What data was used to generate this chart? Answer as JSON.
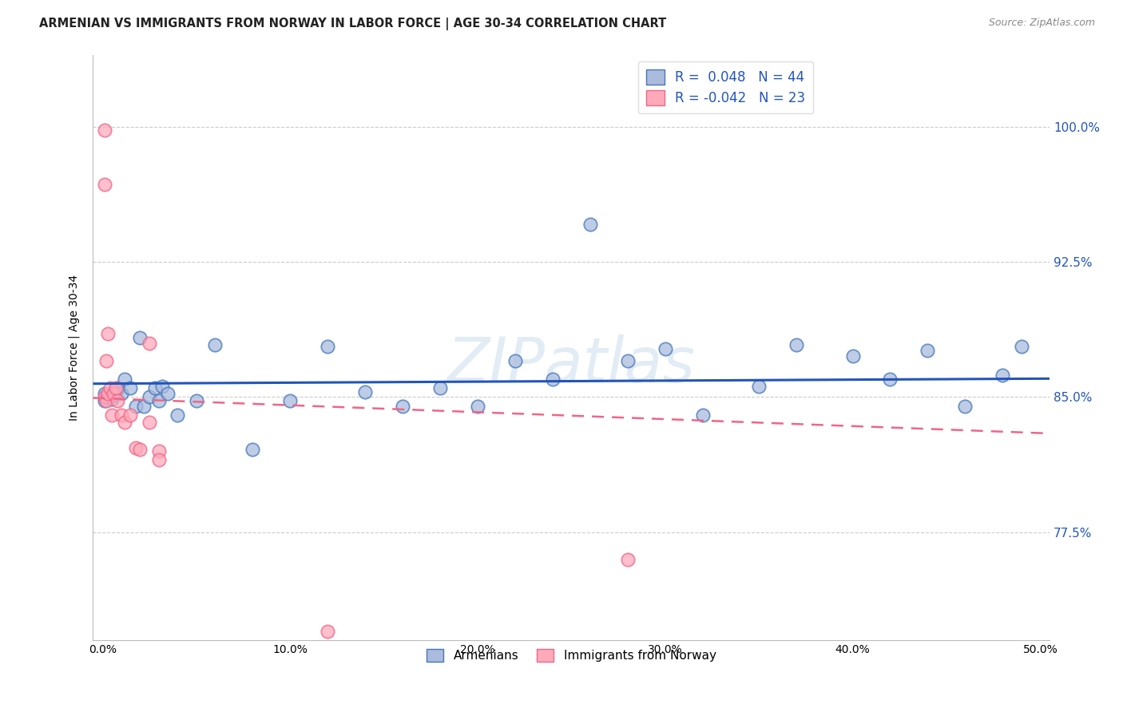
{
  "title": "ARMENIAN VS IMMIGRANTS FROM NORWAY IN LABOR FORCE | AGE 30-34 CORRELATION CHART",
  "source": "Source: ZipAtlas.com",
  "ylabel": "In Labor Force | Age 30-34",
  "xlim": [
    -0.005,
    0.505
  ],
  "ylim": [
    0.715,
    1.04
  ],
  "xtick_labels": [
    "0.0%",
    "10.0%",
    "20.0%",
    "30.0%",
    "40.0%",
    "50.0%"
  ],
  "xtick_vals": [
    0.0,
    0.1,
    0.2,
    0.3,
    0.4,
    0.5
  ],
  "ytick_labels": [
    "77.5%",
    "85.0%",
    "92.5%",
    "100.0%"
  ],
  "ytick_vals": [
    0.775,
    0.85,
    0.925,
    1.0
  ],
  "legend_label1": "Armenians",
  "legend_label2": "Immigrants from Norway",
  "r1": 0.048,
  "n1": 44,
  "r2": -0.042,
  "n2": 23,
  "blue_fill": "#aabbdd",
  "blue_edge": "#4477bb",
  "pink_fill": "#ffaabb",
  "pink_edge": "#ee6688",
  "blue_line_color": "#2255bb",
  "pink_line_color": "#ee6688",
  "watermark": "ZIPatlas",
  "blue_scatter_x": [
    0.001,
    0.001,
    0.002,
    0.003,
    0.004,
    0.005,
    0.006,
    0.007,
    0.008,
    0.01,
    0.012,
    0.015,
    0.018,
    0.02,
    0.022,
    0.025,
    0.028,
    0.03,
    0.032,
    0.035,
    0.04,
    0.05,
    0.06,
    0.08,
    0.1,
    0.12,
    0.14,
    0.16,
    0.18,
    0.2,
    0.22,
    0.24,
    0.26,
    0.28,
    0.3,
    0.32,
    0.35,
    0.37,
    0.4,
    0.42,
    0.44,
    0.46,
    0.48,
    0.49
  ],
  "blue_scatter_y": [
    0.852,
    0.848,
    0.85,
    0.851,
    0.85,
    0.849,
    0.851,
    0.853,
    0.855,
    0.852,
    0.86,
    0.855,
    0.845,
    0.883,
    0.845,
    0.85,
    0.855,
    0.848,
    0.856,
    0.852,
    0.84,
    0.848,
    0.879,
    0.821,
    0.848,
    0.878,
    0.853,
    0.845,
    0.855,
    0.845,
    0.87,
    0.86,
    0.946,
    0.87,
    0.877,
    0.84,
    0.856,
    0.879,
    0.873,
    0.86,
    0.876,
    0.845,
    0.862,
    0.878
  ],
  "pink_scatter_x": [
    0.001,
    0.001,
    0.001,
    0.002,
    0.002,
    0.003,
    0.003,
    0.004,
    0.005,
    0.006,
    0.007,
    0.008,
    0.01,
    0.012,
    0.015,
    0.018,
    0.02,
    0.025,
    0.025,
    0.03,
    0.03,
    0.12,
    0.28
  ],
  "pink_scatter_y": [
    0.998,
    0.968,
    0.85,
    0.87,
    0.848,
    0.885,
    0.852,
    0.855,
    0.84,
    0.852,
    0.855,
    0.848,
    0.84,
    0.836,
    0.84,
    0.822,
    0.821,
    0.836,
    0.88,
    0.82,
    0.815,
    0.72,
    0.76
  ]
}
